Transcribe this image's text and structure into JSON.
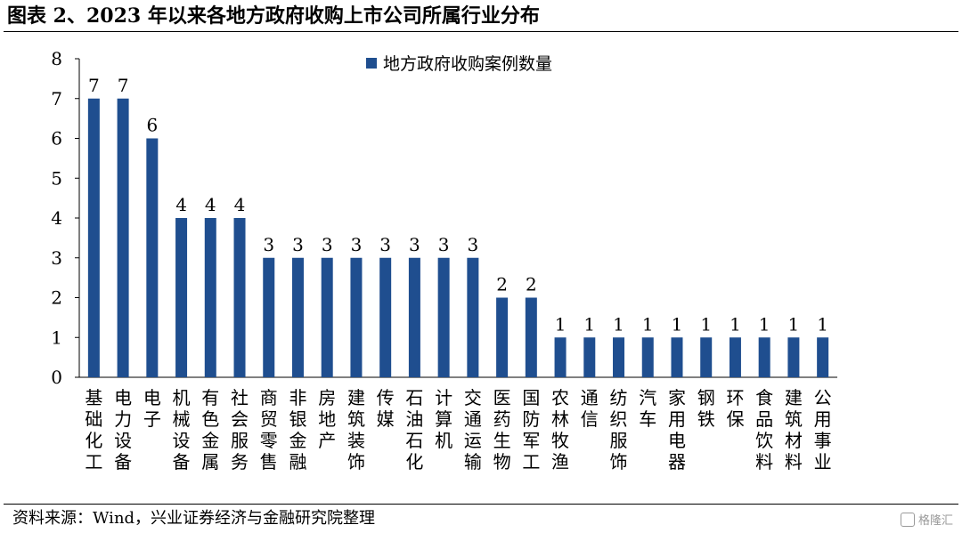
{
  "header": {
    "title": "图表 2、2023 年以来各地方政府收购上市公司所属行业分布"
  },
  "footer": {
    "source": "资料来源：Wind，兴业证券经济与金融研究院整理",
    "watermark": "格隆汇"
  },
  "colors": {
    "bar": "#1f4e8f"
  },
  "chart_data": {
    "type": "bar",
    "title": "",
    "xlabel": "",
    "ylabel": "",
    "ylim": [
      0,
      8
    ],
    "yticks": [
      0,
      1,
      2,
      3,
      4,
      5,
      6,
      7,
      8
    ],
    "grid": false,
    "legend": "top-center",
    "categories": [
      "基础化工",
      "电力设备",
      "电子",
      "机械设备",
      "有色金属",
      "社会服务",
      "商贸零售",
      "非银金融",
      "房地产",
      "建筑装饰",
      "传媒",
      "石油石化",
      "计算机",
      "交通运输",
      "医药生物",
      "国防军工",
      "农林牧渔",
      "通信",
      "纺织服饰",
      "汽车",
      "家用电器",
      "钢铁",
      "环保",
      "食品饮料",
      "建筑材料",
      "公用事业"
    ],
    "series": [
      {
        "name": "地方政府收购案例数量",
        "values": [
          7,
          7,
          6,
          4,
          4,
          4,
          3,
          3,
          3,
          3,
          3,
          3,
          3,
          3,
          2,
          2,
          1,
          1,
          1,
          1,
          1,
          1,
          1,
          1,
          1,
          1
        ]
      }
    ]
  }
}
